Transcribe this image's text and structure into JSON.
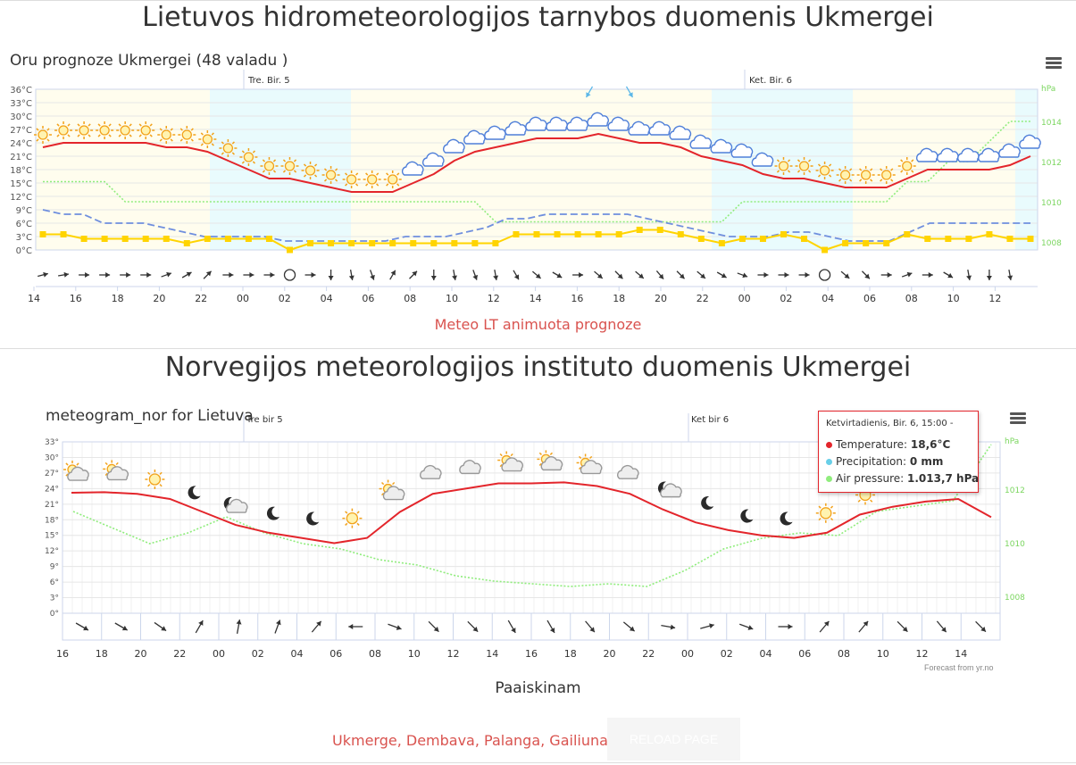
{
  "section1": {
    "heading": "Lietuvos hidrometeorologijos tarnybos duomenis Ukmergei",
    "chart_title": "Oru prognoze Ukmergei (48 valadu )",
    "link_text": "Meteo LT animuota prognoze"
  },
  "section2": {
    "heading": "Norvegijos meteorologijos instituto duomenis Ukmergei",
    "chart_title": "meteogram_nor for Lietuva",
    "credit": "Forecast from yr.no",
    "caption": "Paaiskinam"
  },
  "tooltip": {
    "title": "Ketvirtadienis, Bir. 6, 15:00 -",
    "rows": [
      {
        "label": "Temperature: ",
        "value": "18,6°C",
        "color": "#e3252b"
      },
      {
        "label": "Precipitation: ",
        "value": "0 mm",
        "color": "#68cfe8"
      },
      {
        "label": "Air pressure: ",
        "value": "1.013,7 hPa",
        "color": "#90ed7d"
      }
    ]
  },
  "footer": {
    "cities": [
      "Ukmerge",
      "Dembava",
      "Palanga",
      "Gailiunai"
    ],
    "reload_label": "RELOAD PAGE"
  },
  "colors": {
    "temperature": "#e3252b",
    "pressure": "#90ed7d",
    "wind": "#6f8fde",
    "precip": "#ffd400",
    "night": "#e9fbfd",
    "day": "#fffdee"
  },
  "chart_data": [
    {
      "type": "line",
      "title": "Oru prognoze Ukmergei (48 valadu )",
      "day_labels": [
        "Tre. Bir. 5",
        "Ket. Bir. 6"
      ],
      "x_tick_labels": [
        "14",
        "16",
        "18",
        "20",
        "22",
        "00",
        "02",
        "04",
        "06",
        "08",
        "10",
        "12",
        "14",
        "16",
        "18",
        "20",
        "22",
        "00",
        "02",
        "04",
        "06",
        "08",
        "10",
        "12"
      ],
      "y_left_ticks": [
        "0°C",
        "3°C",
        "6°C",
        "9°C",
        "12°C",
        "15°C",
        "18°C",
        "21°C",
        "24°C",
        "27°C",
        "30°C",
        "33°C",
        "36°C"
      ],
      "y_right_unit": "hPa",
      "y_right_ticks": [
        "1008",
        "1010",
        "1012",
        "1014"
      ],
      "ylim_left": [
        0,
        36
      ],
      "ylim_right": [
        1007.6,
        1015.6
      ],
      "series": [
        {
          "name": "Temperature",
          "unit": "°C",
          "values": [
            23,
            24,
            24,
            24,
            24,
            24,
            23,
            23,
            22,
            20,
            18,
            16,
            16,
            15,
            14,
            13,
            13,
            13,
            15,
            17,
            20,
            22,
            23,
            24,
            25,
            25,
            25,
            26,
            25,
            24,
            24,
            23,
            21,
            20,
            19,
            17,
            16,
            16,
            15,
            14,
            14,
            14,
            16,
            18,
            18,
            18,
            18,
            19,
            21
          ]
        },
        {
          "name": "Wind",
          "unit": "m/s",
          "values": [
            9,
            8,
            8,
            6,
            6,
            6,
            5,
            4,
            3,
            3,
            3,
            3,
            2,
            2,
            2,
            2,
            2,
            2,
            3,
            3,
            3,
            4,
            5,
            7,
            7,
            8,
            8,
            8,
            8,
            8,
            7,
            6,
            5,
            4,
            3,
            3,
            3,
            4,
            4,
            3,
            2,
            2,
            2,
            4,
            6,
            6,
            6,
            6,
            6,
            6
          ]
        },
        {
          "name": "Precipitation",
          "unit": "mm",
          "values": [
            3.5,
            3.5,
            2.5,
            2.5,
            2.5,
            2.5,
            2.5,
            1.5,
            2.5,
            2.5,
            2.5,
            2.5,
            0,
            1.5,
            1.5,
            1.5,
            1.5,
            1.5,
            1.5,
            1.5,
            1.5,
            1.5,
            1.5,
            3.5,
            3.5,
            3.5,
            3.5,
            3.5,
            3.5,
            4.5,
            4.5,
            3.5,
            2.5,
            1.5,
            2.5,
            2.5,
            3.5,
            2.5,
            0,
            1.5,
            1.5,
            1.5,
            3.5,
            2.5,
            2.5,
            2.5,
            3.5,
            2.5,
            2.5
          ]
        },
        {
          "name": "Air pressure",
          "unit": "hPa",
          "values": [
            1011,
            1011,
            1011,
            1011,
            1010,
            1010,
            1010,
            1010,
            1010,
            1010,
            1010,
            1010,
            1010,
            1010,
            1010,
            1010,
            1010,
            1010,
            1010,
            1010,
            1010,
            1010,
            1009,
            1009,
            1009,
            1009,
            1009,
            1009,
            1009,
            1009,
            1009,
            1009,
            1009,
            1009,
            1010,
            1010,
            1010,
            1010,
            1010,
            1010,
            1010,
            1010,
            1011,
            1011,
            1012,
            1012,
            1013,
            1014,
            1014
          ]
        }
      ]
    },
    {
      "type": "line",
      "title": "meteogram_nor for Lietuva",
      "day_labels": [
        "Tre bir 5",
        "Ket bir 6"
      ],
      "x_tick_labels": [
        "16",
        "18",
        "20",
        "22",
        "00",
        "02",
        "04",
        "06",
        "08",
        "10",
        "12",
        "14",
        "16",
        "18",
        "20",
        "22",
        "00",
        "02",
        "04",
        "06",
        "08",
        "10",
        "12",
        "14"
      ],
      "y_left_ticks": [
        "0°",
        "3°",
        "6°",
        "9°",
        "12°",
        "15°",
        "18°",
        "21°",
        "24°",
        "27°",
        "30°",
        "33°"
      ],
      "y_right_unit": "hPa",
      "y_right_ticks": [
        "1008",
        "1010",
        "1012"
      ],
      "ylim_left": [
        0,
        33
      ],
      "ylim_right": [
        1007.4,
        1013.8
      ],
      "series": [
        {
          "name": "Temperature",
          "unit": "°C",
          "values": [
            23.2,
            23.3,
            23.0,
            22.0,
            19.5,
            17.0,
            15.5,
            14.5,
            13.5,
            14.5,
            19.5,
            23.0,
            24.0,
            25.0,
            25.0,
            25.2,
            24.5,
            23.0,
            20.0,
            17.5,
            16.0,
            15.0,
            14.5,
            15.5,
            19.0,
            20.5,
            21.5,
            22.0,
            18.5
          ]
        },
        {
          "name": "Air pressure",
          "unit": "hPa",
          "values": [
            1011.2,
            1010.6,
            1010.0,
            1010.4,
            1011.0,
            1010.4,
            1010.0,
            1009.8,
            1009.4,
            1009.2,
            1008.8,
            1008.6,
            1008.5,
            1008.4,
            1008.5,
            1008.4,
            1009.0,
            1009.8,
            1010.2,
            1010.4,
            1010.3,
            1011.2,
            1011.4,
            1011.6,
            1013.7
          ]
        }
      ]
    }
  ]
}
